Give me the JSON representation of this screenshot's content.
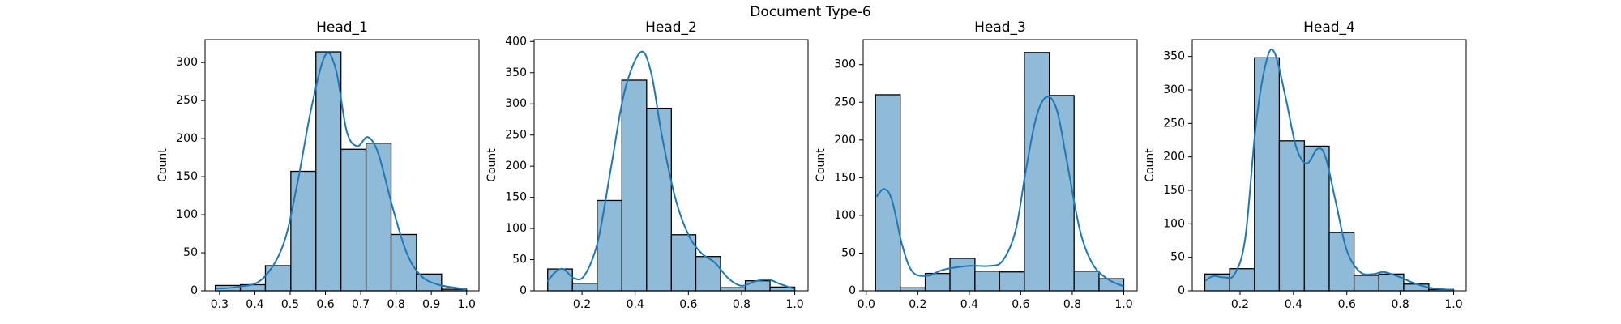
{
  "title": "Document Type-6",
  "chart_data": [
    {
      "type": "histogram",
      "title": "Head_1",
      "ylabel": "Count",
      "color": "#8fbbd9",
      "edgecolor": "#000000",
      "bins": [
        0.288,
        0.359,
        0.43,
        0.502,
        0.573,
        0.644,
        0.715,
        0.786,
        0.858,
        0.929,
        1.0
      ],
      "values": [
        7,
        8,
        33,
        157,
        314,
        186,
        194,
        74,
        22,
        2
      ],
      "xlim": [
        0.259,
        1.035
      ],
      "ylim": [
        0,
        330
      ],
      "xticks": [
        0.3,
        0.4,
        0.5,
        0.6,
        0.7,
        0.8,
        0.9,
        {
          "value": 1,
          "label": "1.0"
        }
      ],
      "yticks": [
        0,
        50,
        100,
        150,
        200,
        250,
        300
      ],
      "kde": {
        "color": "#1f77b4",
        "x": [
          0.29,
          0.35,
          0.42,
          0.48,
          0.52,
          0.56,
          0.6,
          0.63,
          0.66,
          0.69,
          0.72,
          0.75,
          0.79,
          0.83,
          0.87,
          0.92,
          1.0
        ],
        "y": [
          3,
          5,
          15,
          60,
          140,
          240,
          310,
          290,
          210,
          190,
          202,
          180,
          110,
          50,
          20,
          8,
          2
        ]
      }
    },
    {
      "type": "histogram",
      "title": "Head_2",
      "ylabel": "Count",
      "color": "#8fbbd9",
      "edgecolor": "#000000",
      "bins": [
        0.071,
        0.164,
        0.257,
        0.35,
        0.443,
        0.536,
        0.628,
        0.721,
        0.814,
        0.907,
        1.0
      ],
      "values": [
        35,
        12,
        145,
        338,
        293,
        90,
        55,
        5,
        16,
        6
      ],
      "xlim": [
        0.02,
        1.05
      ],
      "ylim": [
        0,
        403
      ],
      "xticks": [
        0.2,
        0.4,
        0.6,
        0.8,
        {
          "value": 1,
          "label": "1.0"
        }
      ],
      "yticks": [
        0,
        50,
        100,
        150,
        200,
        250,
        300,
        350,
        400
      ],
      "kde": {
        "color": "#1f77b4",
        "x": [
          0.07,
          0.1,
          0.13,
          0.17,
          0.21,
          0.26,
          0.31,
          0.36,
          0.42,
          0.46,
          0.5,
          0.55,
          0.6,
          0.65,
          0.7,
          0.75,
          0.8,
          0.85,
          0.9,
          0.95,
          1.0
        ],
        "y": [
          15,
          30,
          35,
          20,
          25,
          80,
          200,
          320,
          383,
          350,
          250,
          150,
          90,
          60,
          45,
          20,
          8,
          15,
          18,
          10,
          3
        ]
      }
    },
    {
      "type": "histogram",
      "title": "Head_3",
      "ylabel": "Count",
      "color": "#8fbbd9",
      "edgecolor": "#000000",
      "bins": [
        0.036,
        0.132,
        0.229,
        0.325,
        0.422,
        0.518,
        0.614,
        0.711,
        0.807,
        0.904,
        1.0
      ],
      "values": [
        260,
        4,
        23,
        43,
        26,
        25,
        316,
        259,
        26,
        16
      ],
      "xlim": [
        -0.012,
        1.052
      ],
      "ylim": [
        0,
        333
      ],
      "xticks": [
        {
          "value": 0,
          "label": "0.0"
        },
        0.2,
        0.4,
        0.6,
        0.8,
        {
          "value": 1,
          "label": "1.0"
        }
      ],
      "yticks": [
        0,
        50,
        100,
        150,
        200,
        250,
        300
      ],
      "kde": {
        "color": "#1f77b4",
        "x": [
          0.04,
          0.07,
          0.1,
          0.14,
          0.18,
          0.24,
          0.3,
          0.4,
          0.48,
          0.53,
          0.58,
          0.62,
          0.66,
          0.7,
          0.74,
          0.78,
          0.83,
          0.88,
          0.94,
          1.0
        ],
        "y": [
          125,
          135,
          120,
          60,
          25,
          20,
          28,
          33,
          33,
          40,
          80,
          160,
          230,
          257,
          240,
          170,
          80,
          35,
          15,
          6
        ]
      }
    },
    {
      "type": "histogram",
      "title": "Head_4",
      "ylabel": "Count",
      "color": "#8fbbd9",
      "edgecolor": "#000000",
      "bins": [
        0.068,
        0.161,
        0.254,
        0.347,
        0.441,
        0.534,
        0.627,
        0.72,
        0.813,
        0.907,
        1.0
      ],
      "values": [
        25,
        33,
        348,
        224,
        216,
        87,
        23,
        25,
        10,
        2
      ],
      "xlim": [
        0.021,
        1.047
      ],
      "ylim": [
        0,
        375
      ],
      "xticks": [
        0.2,
        0.4,
        0.6,
        0.8,
        {
          "value": 1,
          "label": "1.0"
        }
      ],
      "yticks": [
        0,
        50,
        100,
        150,
        200,
        250,
        300,
        350
      ],
      "kde": {
        "color": "#1f77b4",
        "x": [
          0.07,
          0.1,
          0.14,
          0.18,
          0.22,
          0.26,
          0.3,
          0.33,
          0.37,
          0.41,
          0.45,
          0.49,
          0.52,
          0.56,
          0.6,
          0.65,
          0.7,
          0.74,
          0.8,
          0.86,
          0.92,
          1.0
        ],
        "y": [
          15,
          22,
          20,
          25,
          80,
          250,
          345,
          355,
          290,
          215,
          190,
          212,
          200,
          130,
          60,
          28,
          25,
          28,
          20,
          10,
          4,
          1
        ]
      }
    }
  ]
}
